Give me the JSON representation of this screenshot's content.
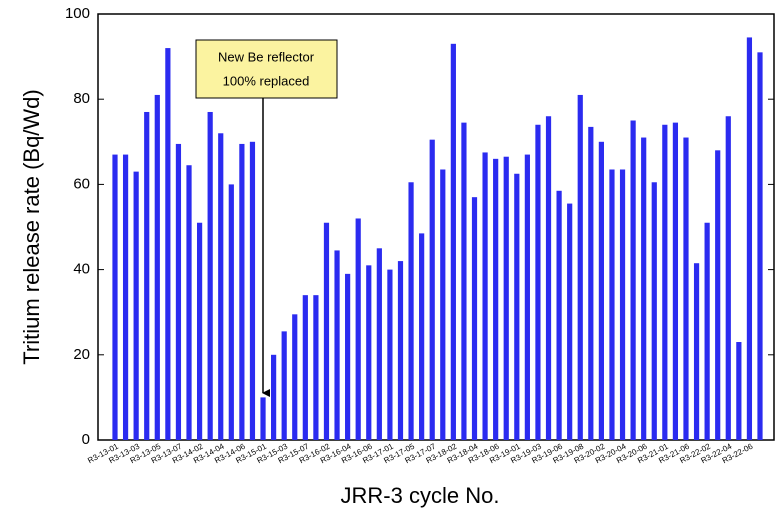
{
  "chart_data": {
    "type": "bar",
    "xlabel": "JRR-3 cycle No.",
    "ylabel": "Tritium release rate  (Bq/Wd)",
    "annotation": [
      "New Be reflector",
      "100% replaced"
    ],
    "color": "#2b2bf0",
    "categories": [
      "R3-13-01",
      null,
      "R3-13-03",
      null,
      "R3-13-05",
      null,
      "R3-13-07",
      null,
      "R3-14-02",
      null,
      "R3-14-04",
      null,
      "R3-14-06",
      null,
      "R3-15-01",
      null,
      "R3-15-03",
      null,
      "R3-15-07",
      null,
      "R3-16-02",
      null,
      "R3-16-04",
      null,
      "R3-16-06",
      null,
      "R3-17-01",
      null,
      "R3-17-05",
      null,
      "R3-17-07",
      null,
      "R3-18-02",
      null,
      "R3-18-04",
      null,
      "R3-18-06",
      null,
      "R3-19-01",
      null,
      "R3-19-03",
      null,
      "R3-19-06",
      null,
      "R3-19-08",
      null,
      "R3-20-02",
      null,
      "R3-20-04",
      null,
      "R3-20-06",
      null,
      "R3-21-01",
      null,
      "R3-21-06",
      null,
      "R3-22-02",
      null,
      "R3-22-04",
      null,
      "R3-22-06",
      null
    ],
    "values": [
      67,
      67,
      63,
      77,
      81,
      92,
      69.5,
      64.5,
      51,
      77,
      72,
      60,
      69.5,
      70,
      10,
      20,
      25.5,
      29.5,
      34,
      34,
      51,
      44.5,
      39,
      52,
      41,
      45,
      40,
      42,
      60.5,
      48.5,
      70.5,
      63.5,
      93,
      74.5,
      57,
      67.5,
      66,
      66.5,
      62.5,
      67,
      74,
      76,
      58.5,
      55.5,
      81,
      73.5,
      70,
      63.5,
      63.5,
      75,
      71,
      60.5,
      74,
      74.5,
      71,
      41.5,
      51,
      68,
      76,
      23,
      94.5,
      91
    ],
    "ylim": [
      0,
      100
    ],
    "yticks": [
      0,
      20,
      40,
      60,
      80,
      100
    ]
  }
}
